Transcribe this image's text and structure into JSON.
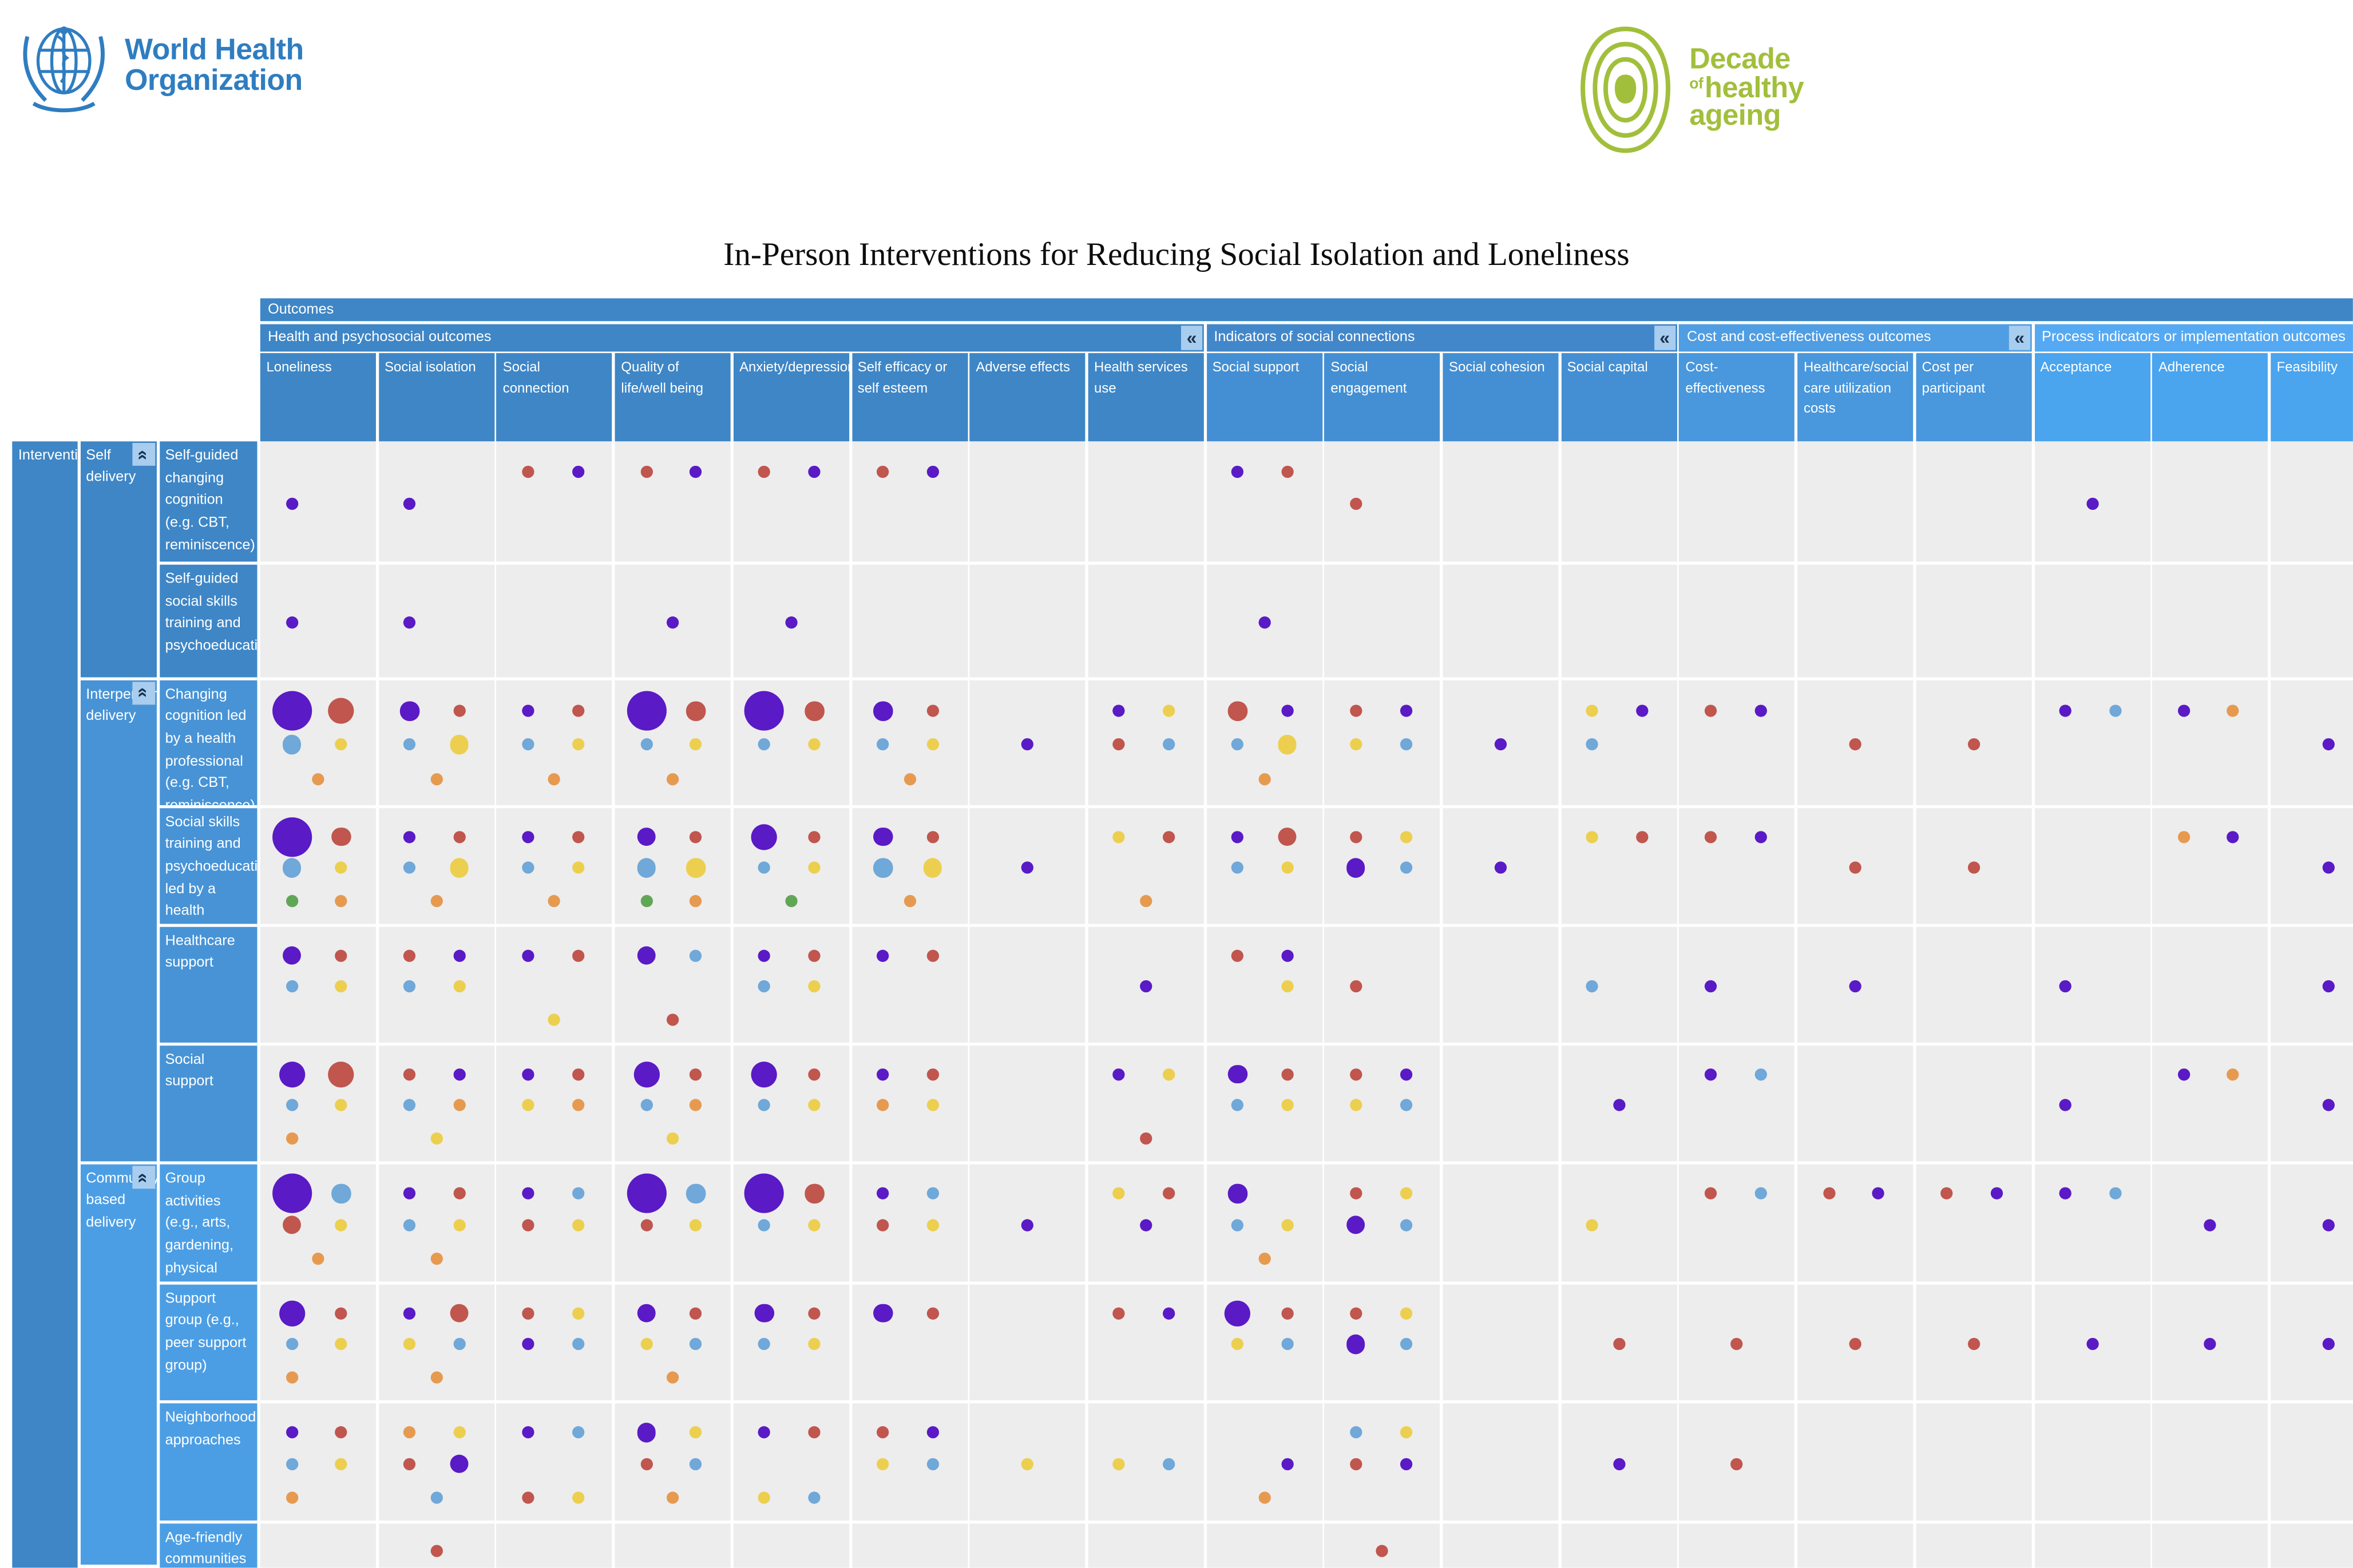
{
  "header": {
    "who_line1": "World Health",
    "who_line2": "Organization",
    "decade_word1": "Decade",
    "decade_of": "of",
    "decade_word2": "healthy",
    "decade_word3": "ageing"
  },
  "title": "In-Person Interventions for Reducing Social Isolation and Loneliness",
  "ui": {
    "outcomes_label": "Outcomes",
    "corner_label": "Interventions",
    "collapse_icon": "«",
    "colors": {
      "who_blue": "#2f7dc1",
      "decade_green": "#a2bf3c",
      "outcomes_bar": "#3e86c6",
      "bar_health": "#3e86c6",
      "bar_indicators": "#4287ca",
      "bar_cost": "#4f9de2",
      "bar_process": "#55a9f2",
      "col_health": "#3e86c6",
      "col_indicators": "#448fd3",
      "col_cost": "#4997dc",
      "col_process": "#4aa4ee",
      "zone_self": "#3e86c6",
      "zone_interpersonal": "#4793d6",
      "zone_community": "#4c9ee4",
      "cell_bg": "#ededed",
      "collapse_bg": "#a9cdee",
      "collapse_fg": "#16324f",
      "dot": {
        "P": "#5a1ac6",
        "R": "#c0564e",
        "B": "#6fa8d9",
        "Y": "#eccf4e",
        "G": "#61a656",
        "O": "#e69a50"
      }
    },
    "dot_color_names": {
      "P": "purple",
      "R": "red",
      "B": "blue",
      "Y": "yellow",
      "G": "green",
      "O": "orange"
    }
  },
  "chart_data": {
    "type": "heatmap",
    "subtype": "evidence-gap-bubble-matrix",
    "title": "In-Person Interventions for Reducing Social Isolation and Loneliness",
    "cell_encoding": "Each token = dot: Letter(color P purple,R red,B blue,Y yellow,G green,O orange) + size 1-5 (small to extra-large) + '.' + slot 1-9 (1 TL,2 TR,3 ML,4 MR,5 BL,6 BR,7 TC,8 MC,9 BC)",
    "column_groups": [
      {
        "label": "Health and psychosocial outcomes",
        "color_key": "health",
        "columns": [
          1,
          2,
          3,
          4,
          5,
          6,
          7,
          8
        ],
        "collapsible": true
      },
      {
        "label": "Indicators of social connections",
        "color_key": "indicators",
        "columns": [
          9,
          10,
          11,
          12
        ],
        "collapsible": true
      },
      {
        "label": "Cost and cost-effectiveness outcomes",
        "color_key": "cost",
        "columns": [
          13,
          14,
          15
        ],
        "collapsible": true
      },
      {
        "label": "Process indicators or implementation outcomes",
        "color_key": "process",
        "columns": [
          16,
          17,
          18
        ],
        "collapsible": false
      }
    ],
    "columns": [
      "Loneliness",
      "Social isolation",
      "Social connection",
      "Quality of life/well being",
      "Anxiety/depression",
      "Self efficacy or self esteem",
      "Adverse effects",
      "Health services use",
      "Social support",
      "Social engagement",
      "Social cohesion",
      "Social capital",
      "Cost-effectiveness",
      "Healthcare/social care utilization costs",
      "Cost per participant",
      "Acceptance",
      "Adherence",
      "Feasibility"
    ],
    "row_groups": [
      {
        "label": "Self delivery",
        "zone": "self",
        "rows": [
          1,
          2
        ]
      },
      {
        "label": "Interpersonal delivery",
        "zone": "interpersonal",
        "rows": [
          3,
          4,
          5,
          6
        ]
      },
      {
        "label": "Community based delivery",
        "zone": "community",
        "rows": [
          7,
          8,
          9,
          10
        ]
      }
    ],
    "rows": [
      {
        "label": "Self-guided changing cognition (e.g. CBT, reminiscence)",
        "cells": {
          "1": "P2.3",
          "2": "P2.3",
          "3": "R2.1 P2.2",
          "4": "R2.1 P2.2",
          "5": "R2.1 P2.2",
          "6": "R2.1 P2.2",
          "9": "P2.1 R2.2",
          "10": "R2.3",
          "16": "P2.8"
        }
      },
      {
        "label": "Self-guided social skills training and psychoeducation",
        "cells": {
          "1": "P2.3",
          "2": "P2.3",
          "4": "P2.8",
          "5": "P2.8",
          "9": "P2.8"
        }
      },
      {
        "label": "Changing cognition led by a health professional (e.g. CBT, reminiscence)",
        "cells": {
          "1": "P5.1 R4.2 B3.3 Y2.4 O2.9",
          "2": "P3.1 R2.2 B2.3 Y3.4 O2.9",
          "3": "P2.1 R2.2 B2.3 Y2.4 O2.9",
          "4": "P5.1 R3.2 B2.3 Y2.4 O2.9",
          "5": "P5.1 R3.2 B2.3 Y2.4",
          "6": "P3.1 R2.2 B2.3 Y2.4 O2.9",
          "7": "P2.8",
          "8": "P2.1 Y2.2 R2.3 B2.4",
          "9": "R3.1 P2.2 B2.3 Y3.4 O2.9",
          "10": "R2.1 P2.2 Y2.3 B2.4",
          "11": "P2.8",
          "12": "Y2.1 P2.2 B2.3",
          "13": "R2.1 P2.2",
          "14": "R2.8",
          "15": "R2.8",
          "16": "P2.1 B2.2",
          "17": "P2.1 O2.2",
          "18": "P2.8"
        }
      },
      {
        "label": "Social skills training and psychoeducation led by a health professional",
        "cells": {
          "1": "P5.1 R3.2 B3.3 Y2.4 G2.5 O2.6",
          "2": "P2.1 R2.2 B2.3 Y3.4 O2.9",
          "3": "P2.1 R2.2 B2.3 Y2.4 O2.9",
          "4": "P3.1 R2.2 B3.3 Y3.4 G2.5 O2.6",
          "5": "P4.1 R2.2 B2.3 Y2.4 G2.9",
          "6": "P3.1 R2.2 B3.3 Y3.4 O2.9",
          "7": "P2.8",
          "8": "Y2.1 R2.2 O2.9",
          "9": "P2.1 R3.2 B2.3 Y2.4",
          "10": "R2.1 Y2.2 P3.3 B2.4",
          "11": "P2.8",
          "12": "Y2.1 R2.2",
          "13": "R2.1 P2.2",
          "14": "R2.8",
          "15": "R2.8",
          "17": "O2.1 P2.2",
          "18": "P2.8"
        }
      },
      {
        "label": "Healthcare support",
        "cells": {
          "1": "P3.1 R2.2 B2.3 Y2.4",
          "2": "R2.1 P2.2 B2.3 Y2.4",
          "3": "P2.1 R2.2 Y2.9",
          "4": "P3.1 B2.2 R2.9",
          "5": "P2.1 R2.2 B2.3 Y2.4",
          "6": "P2.1 R2.2",
          "8": "P2.8",
          "9": "R2.1 P2.2 Y2.4",
          "10": "R2.3",
          "12": "B2.3",
          "13": "P2.3",
          "14": "P2.8",
          "16": "P2.3",
          "18": "P2.8"
        }
      },
      {
        "label": "Social support",
        "cells": {
          "1": "P4.1 R4.2 B2.3 Y2.4 O2.5",
          "2": "R2.1 P2.2 B2.3 O2.4 Y2.9",
          "3": "P2.1 R2.2 Y2.3 O2.4",
          "4": "P4.1 R2.2 B2.3 O2.4 Y2.9",
          "5": "P4.1 R2.2 B2.3 Y2.4",
          "6": "P2.1 R2.2 O2.3 Y2.4",
          "8": "P2.1 Y2.2 R2.9",
          "9": "P3.1 R2.2 B2.3 Y2.4",
          "10": "R2.1 P2.2 Y2.3 B2.4",
          "12": "P2.8",
          "13": "P2.1 B2.2",
          "16": "P2.3",
          "17": "P2.1 O2.2",
          "18": "P2.8"
        }
      },
      {
        "label": "Group activities (e.g., arts, gardening, physical activity)",
        "cells": {
          "1": "P5.1 B3.2 R3.3 Y2.4 O2.9",
          "2": "P2.1 R2.2 B2.3 Y2.4 O2.9",
          "3": "P2.1 B2.2 R2.3 Y2.4",
          "4": "P5.1 B3.2 R2.3 Y2.4",
          "5": "P5.1 R3.2 B2.3 Y2.4",
          "6": "P2.1 B2.2 R2.3 Y2.4",
          "7": "P2.8",
          "8": "Y2.1 R2.2 P2.8",
          "9": "P3.1 B2.3 Y2.4 O2.9",
          "10": "R2.1 Y2.2 P3.3 B2.4",
          "12": "Y2.3",
          "13": "R2.1 B2.2",
          "14": "R2.1 P2.2",
          "15": "R2.1 P2.2",
          "16": "P2.1 B2.2",
          "17": "P2.8",
          "18": "P2.8"
        }
      },
      {
        "label": "Support group (e.g., peer support group)",
        "cells": {
          "1": "P4.1 R2.2 B2.3 Y2.4 O2.5",
          "2": "P2.1 R3.2 Y2.3 B2.4 O2.9",
          "3": "R2.1 Y2.2 P2.3 B2.4",
          "4": "P3.1 R2.2 Y2.3 B2.4 O2.9",
          "5": "P3.1 R2.2 B2.3 Y2.4",
          "6": "P3.1 R2.2",
          "8": "R2.1 P2.2",
          "9": "P4.1 R2.2 Y2.3 B2.4",
          "10": "R2.1 Y2.2 P3.3 B2.4",
          "12": "R2.8",
          "13": "R2.8",
          "14": "R2.8",
          "15": "R2.8",
          "16": "P2.8",
          "17": "P2.8",
          "18": "P2.8"
        }
      },
      {
        "label": "Neighborhood approaches",
        "cells": {
          "1": "P2.1 R2.2 B2.3 Y2.4 O2.5",
          "2": "O2.1 Y2.2 R2.3 P3.4 B2.9",
          "3": "P2.1 B2.2 R2.5 Y2.6",
          "4": "P3.1 Y2.2 R2.3 B2.4 O2.9",
          "5": "P2.1 R2.2 Y2.5 B2.6",
          "6": "R2.1 P2.2 Y2.3 B2.4",
          "7": "Y2.8",
          "8": "Y2.3 B2.4",
          "9": "P2.4 O2.9",
          "10": "B2.1 Y2.2 R2.3 P2.4",
          "12": "P2.8",
          "13": "R2.8"
        }
      },
      {
        "label": "Age-friendly communities",
        "cells": {
          "2": "R2.7",
          "10": "R2.7"
        }
      }
    ]
  }
}
